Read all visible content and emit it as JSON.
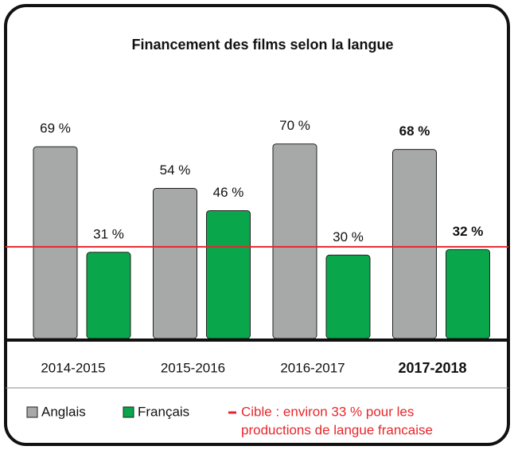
{
  "chart_data": {
    "type": "bar",
    "title": "Financement des films selon la langue",
    "categories": [
      "2014-2015",
      "2015-2016",
      "2016-2017",
      "2017-2018"
    ],
    "series": [
      {
        "name": "Anglais",
        "color": "#a7a9a8",
        "values": [
          69,
          54,
          70,
          68
        ],
        "value_labels": [
          "69 %",
          "54 %",
          "70 %",
          "68 %"
        ]
      },
      {
        "name": "Français",
        "color": "#0aa64b",
        "values": [
          31,
          46,
          30,
          32
        ],
        "value_labels": [
          "31 %",
          "46 %",
          "30 %",
          "32 %"
        ]
      }
    ],
    "highlight": 3,
    "ylim": [
      0,
      100
    ],
    "target": {
      "value": 33,
      "color": "#e8262b",
      "label": [
        "Cible : environ 33 % pour les",
        "productions de langue francaise"
      ]
    }
  }
}
